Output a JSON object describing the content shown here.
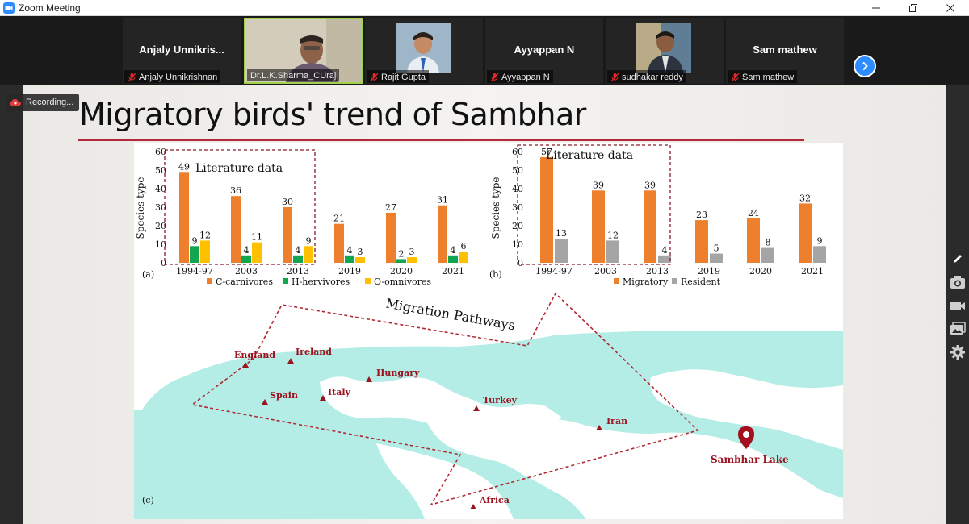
{
  "window": {
    "title": "Zoom Meeting",
    "minimize_icon": "minimize-icon",
    "restore_icon": "restore-icon",
    "close_icon": "close-icon"
  },
  "gallery": {
    "tiles": [
      {
        "display_name": "Anjaly  Unnikris...",
        "label": "Anjaly Unnikrishnan",
        "muted": true
      },
      {
        "display_name": "",
        "label": "Dr.L.K.Sharma_CUraj",
        "muted": false
      },
      {
        "display_name": "",
        "label": "Rajit Gupta",
        "muted": true
      },
      {
        "display_name": "Ayyappan N",
        "label": "Ayyappan N",
        "muted": true
      },
      {
        "display_name": "",
        "label": "sudhakar reddy",
        "muted": true
      },
      {
        "display_name": "Sam mathew",
        "label": "Sam mathew",
        "muted": true
      }
    ],
    "next_icon": "chevron-right-icon"
  },
  "recording": {
    "label": "Recording..."
  },
  "slide": {
    "title": "Migratory birds' trend of Sambhar",
    "accent_color": "#b4283c"
  },
  "chart_data": [
    {
      "type": "bar",
      "panel_label": "(a)",
      "ylabel": "Species type",
      "ylim": [
        0,
        60
      ],
      "yticks": [
        "0",
        "10",
        "20",
        "30",
        "40",
        "50",
        "60"
      ],
      "categories": [
        "1994-97",
        "2003",
        "2013",
        "2019",
        "2020",
        "2021"
      ],
      "series": [
        {
          "name": "C-carnivores",
          "color": "#ee7f2d",
          "values": [
            49,
            36,
            30,
            21,
            27,
            31
          ]
        },
        {
          "name": "H-hervivores",
          "color": "#13a650",
          "values": [
            9,
            4,
            4,
            4,
            2,
            4
          ]
        },
        {
          "name": "O-omnivores",
          "color": "#ffc000",
          "values": [
            12,
            11,
            9,
            3,
            3,
            6
          ]
        }
      ],
      "annotation": "Literature data",
      "legend": "bottom"
    },
    {
      "type": "bar",
      "panel_label": "(b)",
      "ylabel": "Species type",
      "ylim": [
        0,
        60
      ],
      "yticks": [
        "0",
        "10",
        "20",
        "30",
        "40",
        "50",
        "60"
      ],
      "categories": [
        "1994-97",
        "2003",
        "2013",
        "2019",
        "2020",
        "2021"
      ],
      "series": [
        {
          "name": "Migratory",
          "color": "#ee7f2d",
          "values": [
            57,
            39,
            39,
            23,
            24,
            32
          ]
        },
        {
          "name": "Resident",
          "color": "#a5a5a5",
          "values": [
            13,
            12,
            4,
            5,
            8,
            9
          ]
        }
      ],
      "annotation": "Literature data",
      "legend": "bottom"
    }
  ],
  "map": {
    "panel_label": "(c)",
    "title": "Migration Pathways",
    "destination": "Sambhar Lake",
    "places": [
      "England",
      "Ireland",
      "Hungary",
      "Spain",
      "Italy",
      "Turkey",
      "Iran",
      "Africa"
    ],
    "sea_color": "#b4ede6",
    "pin_color": "#a3101f"
  },
  "toolbar": {
    "icons": [
      "pen-icon",
      "camera-icon",
      "video-icon",
      "gallery-icon",
      "gear-icon"
    ]
  }
}
